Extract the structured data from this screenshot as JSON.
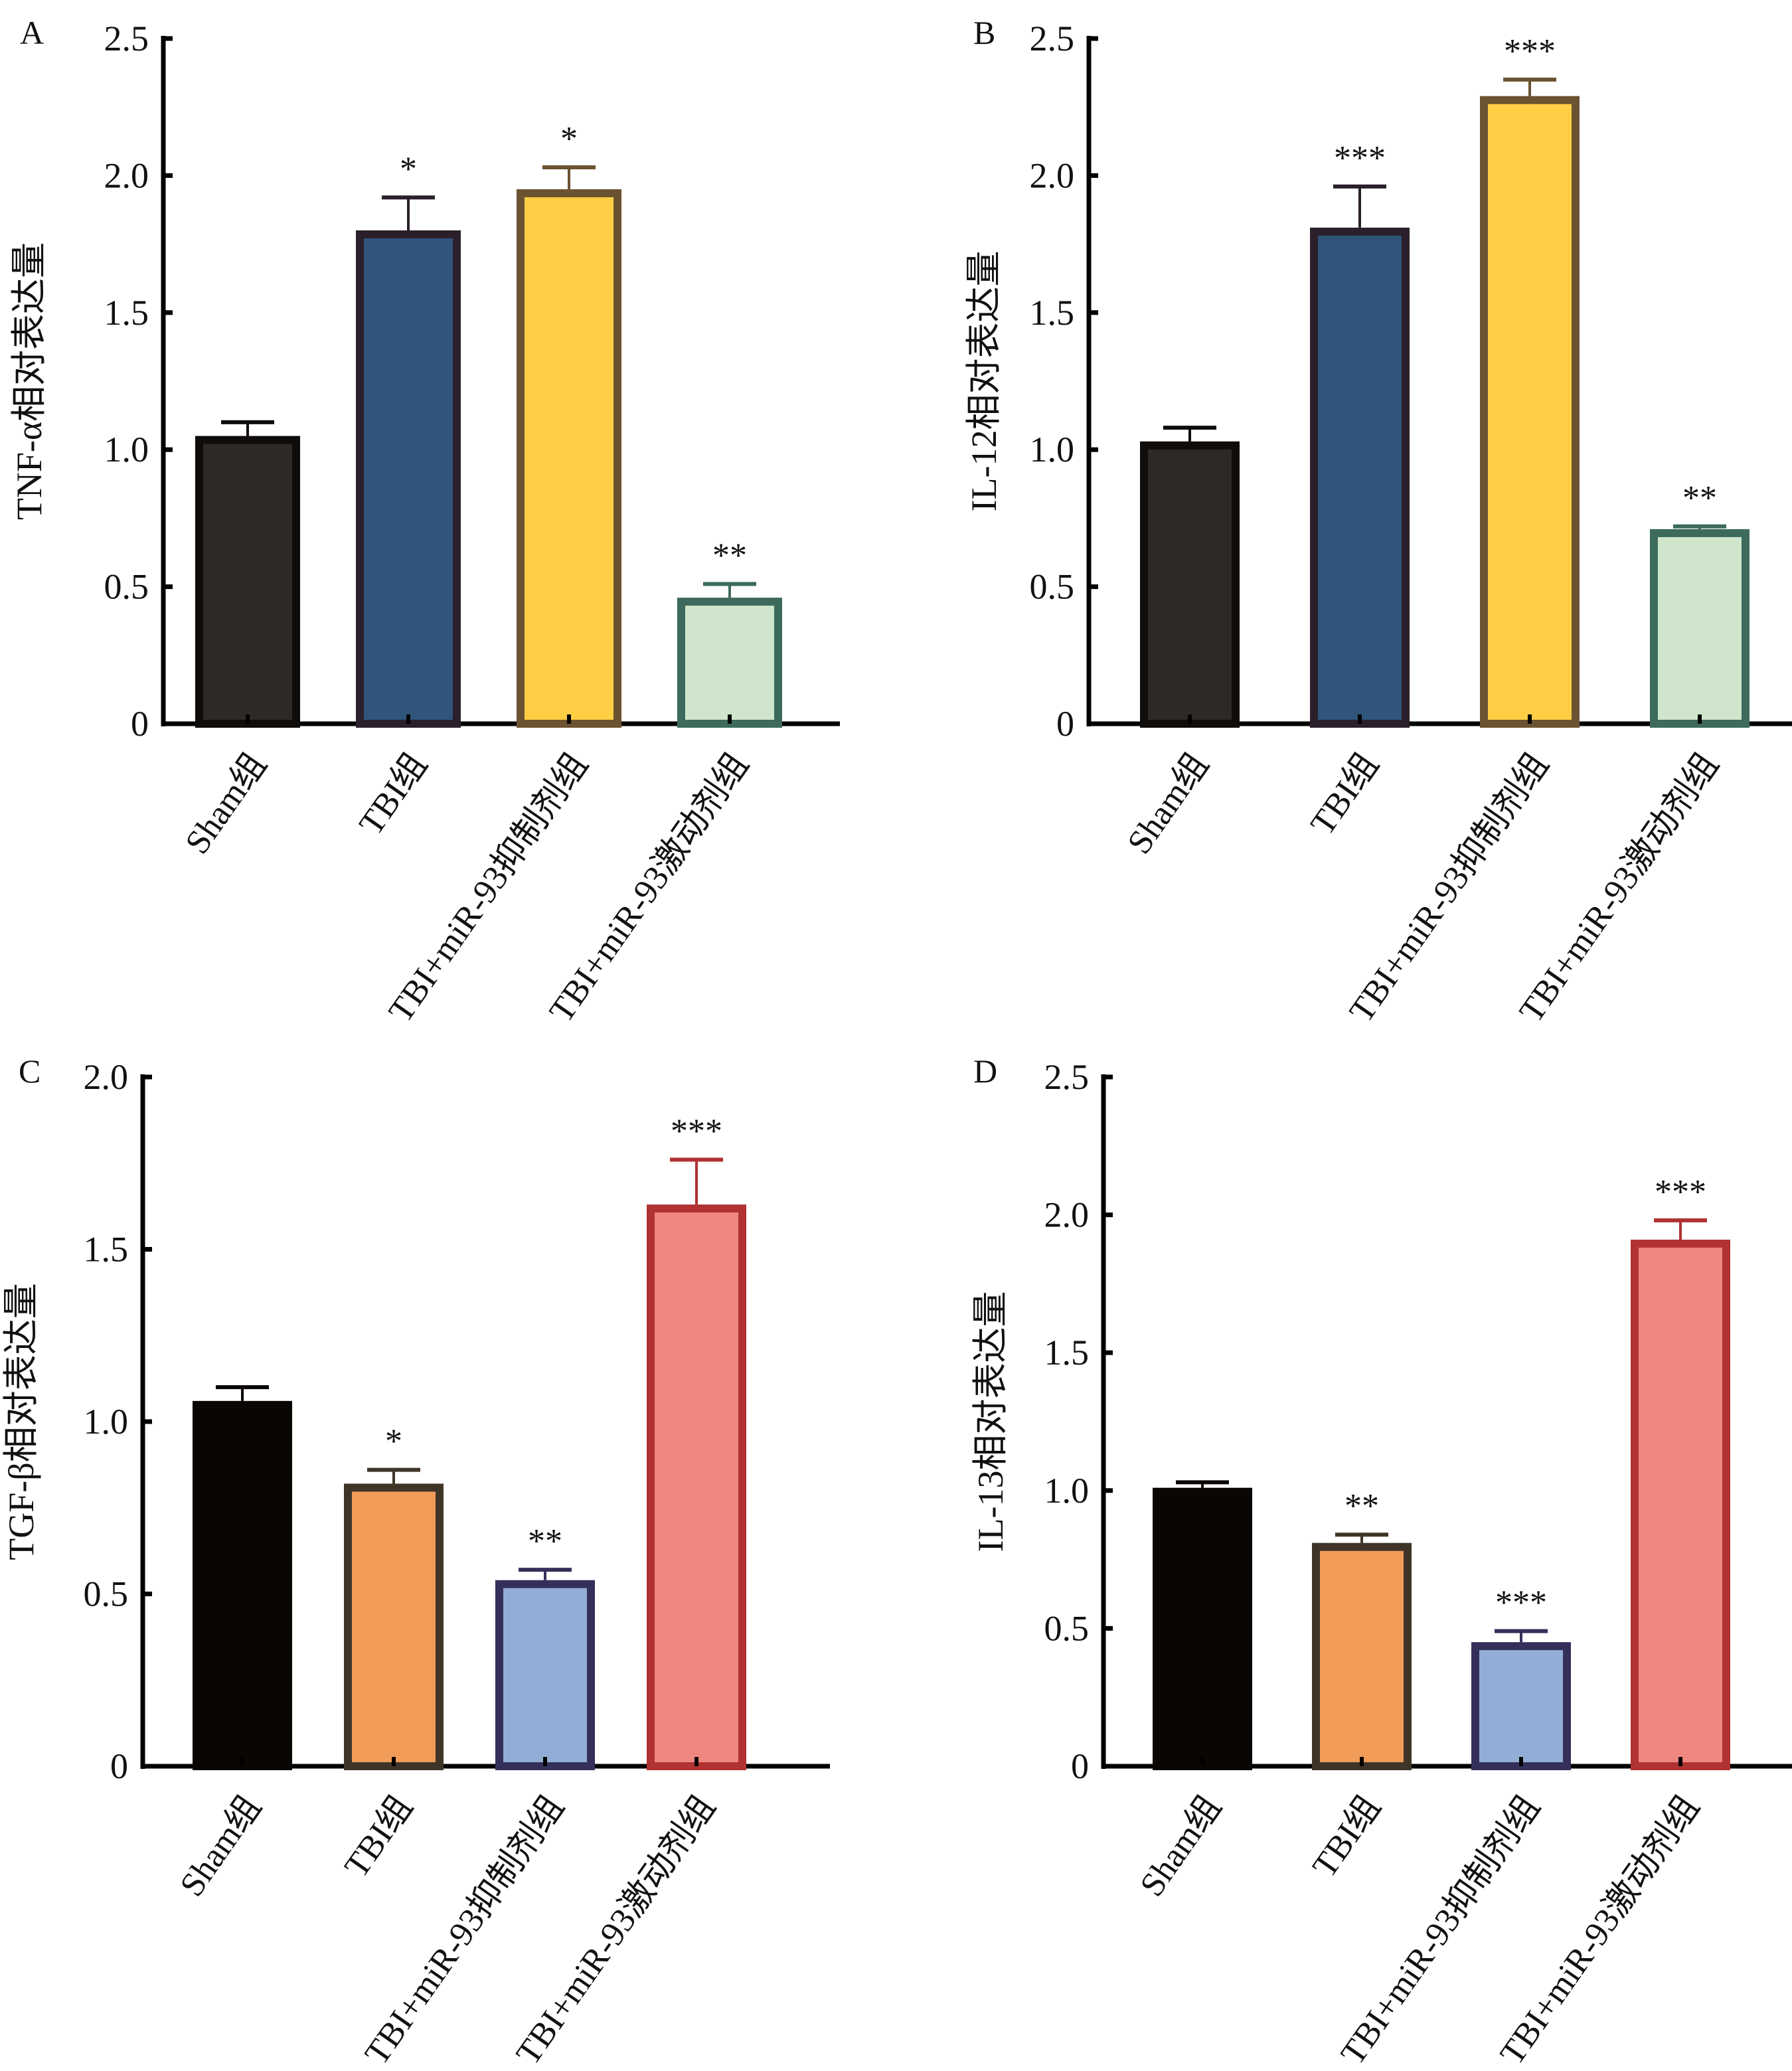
{
  "chart_data": [
    {
      "panel": "A",
      "type": "bar",
      "title": "",
      "xlabel": "",
      "ylabel": "TNF-α相对表达量",
      "ylim": [
        0,
        2.5
      ],
      "yticks": [
        0,
        0.5,
        1.0,
        1.5,
        2.0,
        2.5
      ],
      "ytick_labels": [
        "0",
        "0.5",
        "1.0",
        "1.5",
        "2.0",
        "2.5"
      ],
      "categories": [
        "Sham组",
        "TBI组",
        "TBI+miR-93抑制剂组",
        "TBI+miR-93激动剂组"
      ],
      "values": [
        1.05,
        1.8,
        1.95,
        0.46
      ],
      "error_upper": [
        1.1,
        1.92,
        2.03,
        0.51
      ],
      "significance": [
        "",
        "*",
        "*",
        "**"
      ],
      "fill_colors": [
        "#2d2925",
        "#30557a",
        "#ffce44",
        "#cfe6cc"
      ],
      "border_colors": [
        "#0f0c0a",
        "#2a1f2a",
        "#6b5230",
        "#3d6a5c"
      ],
      "grid": false
    },
    {
      "panel": "B",
      "type": "bar",
      "title": "",
      "xlabel": "",
      "ylabel": "IL-12相对表达量",
      "ylim": [
        0,
        2.5
      ],
      "yticks": [
        0,
        0.5,
        1.0,
        1.5,
        2.0,
        2.5
      ],
      "ytick_labels": [
        "0",
        "0.5",
        "1.0",
        "1.5",
        "2.0",
        "2.5"
      ],
      "categories": [
        "Sham组",
        "TBI组",
        "TBI+miR-93抑制剂组",
        "TBI+miR-93激动剂组"
      ],
      "values": [
        1.03,
        1.81,
        2.29,
        0.71
      ],
      "error_upper": [
        1.08,
        1.96,
        2.35,
        0.72
      ],
      "significance": [
        "",
        "***",
        "***",
        "**"
      ],
      "fill_colors": [
        "#2d2925",
        "#30557a",
        "#ffce44",
        "#cfe6cc"
      ],
      "border_colors": [
        "#0f0c0a",
        "#2a1f2a",
        "#6b5230",
        "#3d6a5c"
      ],
      "grid": false
    },
    {
      "panel": "C",
      "type": "bar",
      "title": "",
      "xlabel": "",
      "ylabel": "TGF-β相对表达量",
      "ylim": [
        0,
        2.0
      ],
      "yticks": [
        0,
        0.5,
        1.0,
        1.5,
        2.0
      ],
      "ytick_labels": [
        "0",
        "0.5",
        "1.0",
        "1.5",
        "2.0"
      ],
      "categories": [
        "Sham组",
        "TBI组",
        "TBI+miR-93抑制剂组",
        "TBI+miR-93激动剂组"
      ],
      "values": [
        1.06,
        0.82,
        0.54,
        1.63
      ],
      "error_upper": [
        1.1,
        0.86,
        0.57,
        1.76
      ],
      "significance": [
        "",
        "*",
        "**",
        "***"
      ],
      "fill_colors": [
        "#0a0604",
        "#f09c58",
        "#92aed6",
        "#f08680"
      ],
      "border_colors": [
        "#0a0604",
        "#3e3428",
        "#34305a",
        "#b03232"
      ],
      "grid": false
    },
    {
      "panel": "D",
      "type": "bar",
      "title": "",
      "xlabel": "",
      "ylabel": "IL-13相对表达量",
      "ylim": [
        0,
        2.5
      ],
      "yticks": [
        0,
        0.5,
        1.0,
        1.5,
        2.0,
        2.5
      ],
      "ytick_labels": [
        "0",
        "0.5",
        "1.0",
        "1.5",
        "2.0",
        "2.5"
      ],
      "categories": [
        "Sham组",
        "TBI组",
        "TBI+miR-93抑制剂组",
        "TBI+miR-93激动剂组"
      ],
      "values": [
        1.01,
        0.81,
        0.45,
        1.91
      ],
      "error_upper": [
        1.03,
        0.84,
        0.49,
        1.98
      ],
      "significance": [
        "",
        "**",
        "***",
        "***"
      ],
      "fill_colors": [
        "#0a0604",
        "#f09c58",
        "#92aed6",
        "#f08680"
      ],
      "border_colors": [
        "#0a0604",
        "#3e3428",
        "#34305a",
        "#b03232"
      ],
      "grid": false
    }
  ]
}
